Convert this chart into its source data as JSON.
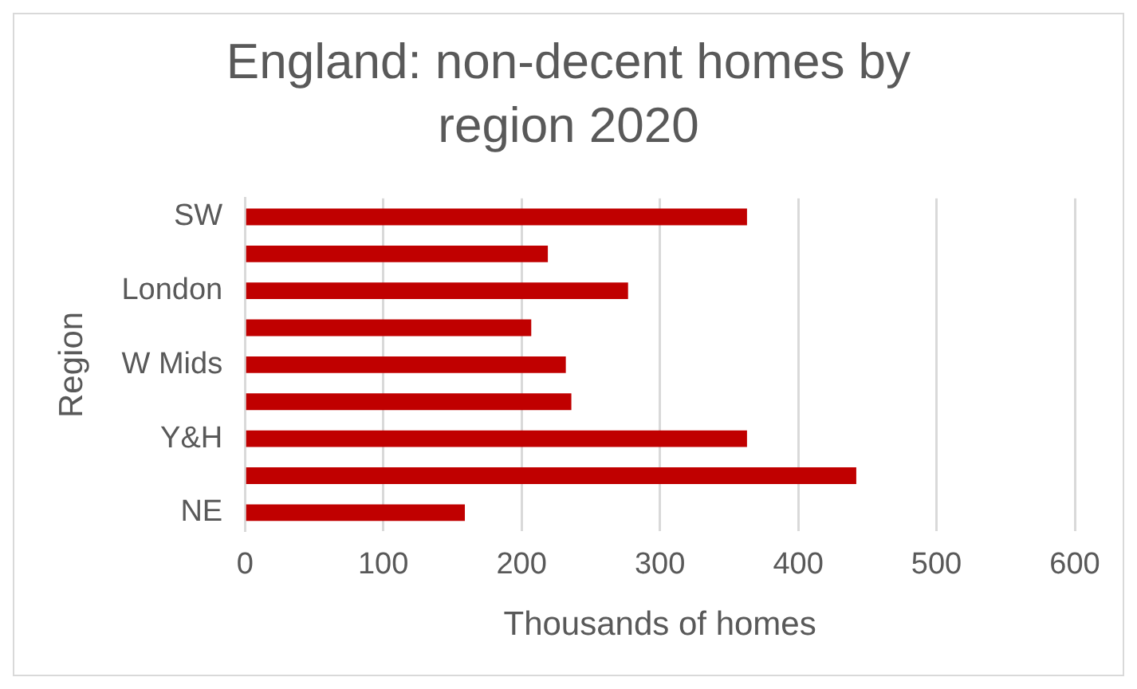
{
  "chart_data": {
    "type": "bar",
    "orientation": "horizontal",
    "title": "England: non-decent homes by region 2020",
    "xlabel": "Thousands of homes",
    "ylabel": "Region",
    "categories": [
      "SW",
      null,
      "London",
      null,
      "W Mids",
      null,
      "Y&H",
      null,
      "NE"
    ],
    "values": [
      363,
      219,
      277,
      207,
      232,
      236,
      363,
      442,
      159
    ],
    "color": "#c00000",
    "xlim": [
      0,
      600
    ],
    "xticks": [
      0,
      100,
      200,
      300,
      400,
      500,
      600
    ],
    "grid": "x"
  }
}
